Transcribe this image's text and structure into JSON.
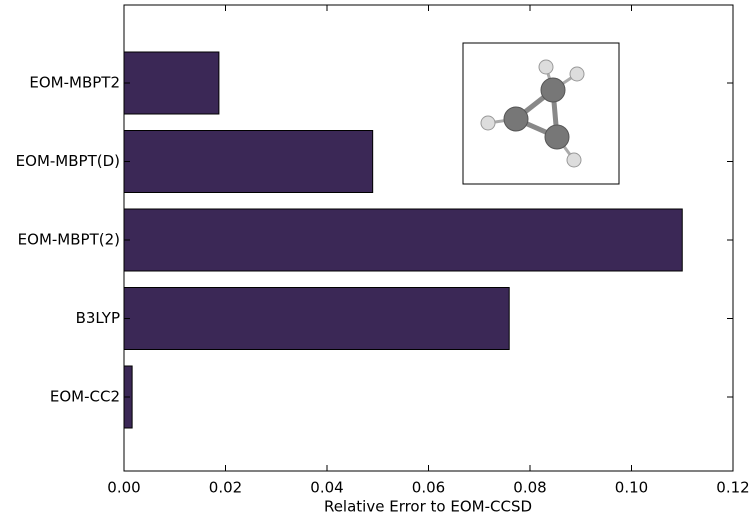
{
  "chart_data": {
    "type": "barh",
    "xlabel": "Relative Error to EOM-CCSD",
    "categories": [
      "EOM-MBPT2",
      "EOM-MBPT(D)",
      "EOM-MBPT(2)",
      "B3LYP",
      "EOM-CC2"
    ],
    "values": [
      0.0187,
      0.049,
      0.11,
      0.0759,
      0.0016
    ],
    "color": "#3b2856",
    "xlim": [
      0,
      0.12
    ],
    "xticks": [
      {
        "value": 0,
        "label": "0.00"
      },
      0.02,
      0.04,
      0.06,
      0.08,
      {
        "value": 0.1,
        "label": "0.10"
      },
      0.12
    ]
  }
}
